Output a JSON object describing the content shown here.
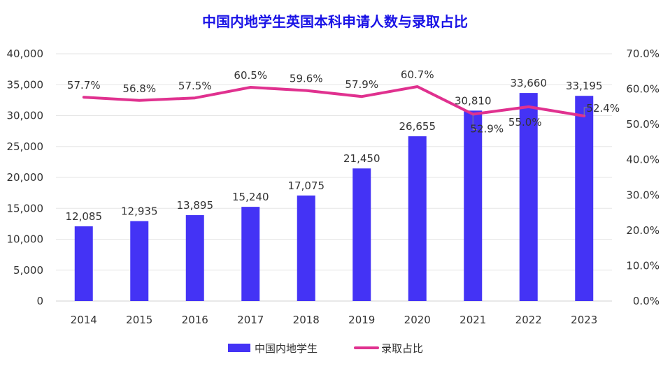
{
  "chart_data": {
    "type": "bar",
    "title": "中国内地学生英国本科申请人数与录取占比",
    "categories": [
      "2014",
      "2015",
      "2016",
      "2017",
      "2018",
      "2019",
      "2020",
      "2021",
      "2022",
      "2023"
    ],
    "series": [
      {
        "name": "中国内地学生",
        "type": "bar",
        "axis": "left",
        "values": [
          12085,
          12935,
          13895,
          15240,
          17075,
          21450,
          26655,
          30810,
          33660,
          33195
        ],
        "labels": [
          "12,085",
          "12,935",
          "13,895",
          "15,240",
          "17,075",
          "21,450",
          "26,655",
          "30,810",
          "33,660",
          "33,195"
        ],
        "color": "#4433f5"
      },
      {
        "name": "录取占比",
        "type": "line",
        "axis": "right",
        "values": [
          57.7,
          56.8,
          57.5,
          60.5,
          59.6,
          57.9,
          60.7,
          52.9,
          55.0,
          52.4
        ],
        "labels": [
          "57.7%",
          "56.8%",
          "57.5%",
          "60.5%",
          "59.6%",
          "57.9%",
          "60.7%",
          "52.9%",
          "55.0%",
          "52.4%"
        ],
        "color": "#e0318f"
      }
    ],
    "y_left": {
      "lim": [
        0,
        40000
      ],
      "ticks": [
        "0",
        "5,000",
        "10,000",
        "15,000",
        "20,000",
        "25,000",
        "30,000",
        "35,000",
        "40,000"
      ]
    },
    "y_right": {
      "lim": [
        0,
        70
      ],
      "ticks": [
        "0.0%",
        "10.0%",
        "20.0%",
        "30.0%",
        "40.0%",
        "50.0%",
        "60.0%",
        "70.0%"
      ]
    },
    "grid": true,
    "legend_position": "bottom"
  },
  "colors": {
    "title": "#1a13e6",
    "grid": "#e6e6e6",
    "axis": "#d0d0d0",
    "text": "#333333",
    "leader": "#888888"
  }
}
